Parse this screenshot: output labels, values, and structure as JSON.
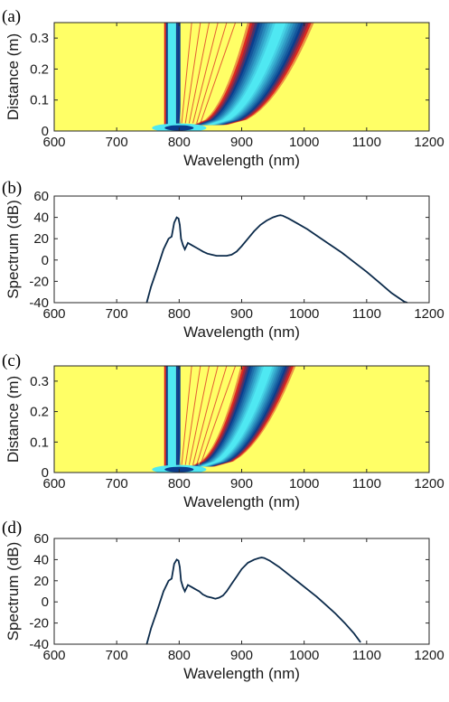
{
  "colors": {
    "background": "#ffffff",
    "axis": "#262626",
    "line": "#0b2a4a",
    "map_low": "#ffff66",
    "map_mid_warm": "#d81e1e",
    "map_mid_cool": "#0a3c8c",
    "map_high": "#4fe8f2"
  },
  "chart_data": [
    {
      "panel_label": "(a)",
      "type": "heatmap",
      "xlabel": "Wavelength (nm)",
      "ylabel": "Distance (m)",
      "xlim": [
        600,
        1200
      ],
      "ylim": [
        0,
        0.35
      ],
      "xticks": [
        "600",
        "700",
        "800",
        "900",
        "1000",
        "1100",
        "1200"
      ],
      "yticks": [
        "0",
        "0.1",
        "0.2",
        "0.3"
      ],
      "features": {
        "pump_band_nm": [
          782,
          795
        ],
        "pump_dark_line_nm": 800,
        "soliton_band_at_fission_nm": [
          820,
          880
        ],
        "soliton_band_at_end_nm": [
          905,
          1020
        ],
        "fission_distance_m": 0.02
      }
    },
    {
      "panel_label": "(b)",
      "type": "line",
      "xlabel": "Wavelength (nm)",
      "ylabel": "Spectrum (dB)",
      "xlim": [
        600,
        1200
      ],
      "ylim": [
        -40,
        60
      ],
      "xticks": [
        "600",
        "700",
        "800",
        "900",
        "1000",
        "1100",
        "1200"
      ],
      "yticks": [
        "-40",
        "-20",
        "0",
        "20",
        "40",
        "60"
      ],
      "series": [
        {
          "x": [
            748,
            755,
            765,
            775,
            783,
            788,
            792,
            796,
            799,
            801,
            803,
            806,
            809,
            814,
            820,
            826,
            832,
            838,
            845,
            852,
            860,
            868,
            876,
            884,
            892,
            900,
            910,
            920,
            930,
            940,
            950,
            958,
            962,
            966,
            975,
            990,
            1005,
            1020,
            1040,
            1060,
            1080,
            1100,
            1120,
            1140,
            1160,
            1165
          ],
          "y": [
            -40,
            -25,
            -8,
            10,
            20,
            22,
            35,
            40,
            39,
            33,
            20,
            14,
            10,
            16,
            14,
            12,
            10,
            8,
            6,
            5,
            4,
            4,
            4,
            5,
            8,
            13,
            20,
            27,
            33,
            37,
            40,
            41.5,
            42,
            41.5,
            39,
            34,
            29,
            23,
            15,
            7,
            -2,
            -11,
            -21,
            -31,
            -39,
            -40
          ]
        }
      ]
    },
    {
      "panel_label": "(c)",
      "type": "heatmap",
      "xlabel": "Wavelength (nm)",
      "ylabel": "Distance (m)",
      "xlim": [
        600,
        1200
      ],
      "ylim": [
        0,
        0.35
      ],
      "xticks": [
        "600",
        "700",
        "800",
        "900",
        "1000",
        "1100",
        "1200"
      ],
      "yticks": [
        "0",
        "0.1",
        "0.2",
        "0.3"
      ],
      "features": {
        "pump_band_nm": [
          782,
          795
        ],
        "pump_dark_line_nm": 800,
        "soliton_band_at_fission_nm": [
          815,
          860
        ],
        "soliton_band_at_end_nm": [
          895,
          990
        ],
        "fission_distance_m": 0.02
      }
    },
    {
      "panel_label": "(d)",
      "type": "line",
      "xlabel": "Wavelength (nm)",
      "ylabel": "Spectrum (dB)",
      "xlim": [
        600,
        1200
      ],
      "ylim": [
        -40,
        60
      ],
      "xticks": [
        "600",
        "700",
        "800",
        "900",
        "1000",
        "1100",
        "1200"
      ],
      "yticks": [
        "-40",
        "-20",
        "0",
        "20",
        "40",
        "60"
      ],
      "series": [
        {
          "x": [
            748,
            755,
            765,
            775,
            783,
            788,
            792,
            796,
            799,
            801,
            803,
            806,
            809,
            814,
            820,
            826,
            832,
            838,
            845,
            852,
            858,
            864,
            870,
            876,
            884,
            892,
            900,
            910,
            920,
            928,
            932,
            936,
            945,
            960,
            975,
            990,
            1005,
            1020,
            1035,
            1050,
            1065,
            1080,
            1090
          ],
          "y": [
            -40,
            -25,
            -8,
            10,
            20,
            22,
            36,
            40,
            39,
            33,
            20,
            14,
            10,
            16,
            14,
            12,
            10,
            7,
            5,
            4,
            3,
            4,
            6,
            10,
            17,
            24,
            31,
            37,
            40,
            41.5,
            42,
            41.5,
            39,
            33,
            26,
            19,
            12,
            5,
            -3,
            -11,
            -20,
            -30,
            -38
          ]
        }
      ]
    }
  ]
}
